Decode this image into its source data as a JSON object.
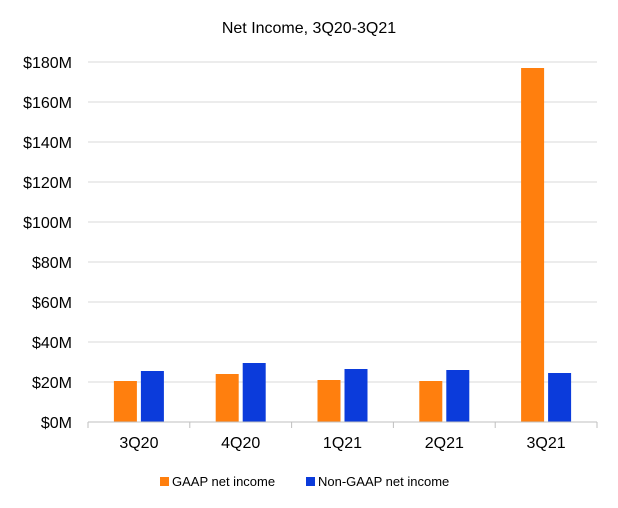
{
  "chart_data": {
    "type": "bar",
    "title": "Net Income, 3Q20-3Q21",
    "categories": [
      "3Q20",
      "4Q20",
      "1Q21",
      "2Q21",
      "3Q21"
    ],
    "series": [
      {
        "name": "GAAP net income",
        "color": "#FF7F0E",
        "values": [
          20.5,
          24,
          21,
          20.5,
          177
        ]
      },
      {
        "name": "Non-GAAP net income",
        "color": "#0B3BDB",
        "values": [
          25.5,
          29.5,
          26.5,
          26,
          24.5
        ]
      }
    ],
    "ylim": [
      0,
      180
    ],
    "yticks": [
      0,
      20,
      40,
      60,
      80,
      100,
      120,
      140,
      160,
      180
    ],
    "ytick_labels": [
      "$0M",
      "$20M",
      "$40M",
      "$60M",
      "$80M",
      "$100M",
      "$120M",
      "$140M",
      "$160M",
      "$180M"
    ],
    "xlabel": "",
    "ylabel": "",
    "grid": true,
    "legend_position": "bottom"
  }
}
